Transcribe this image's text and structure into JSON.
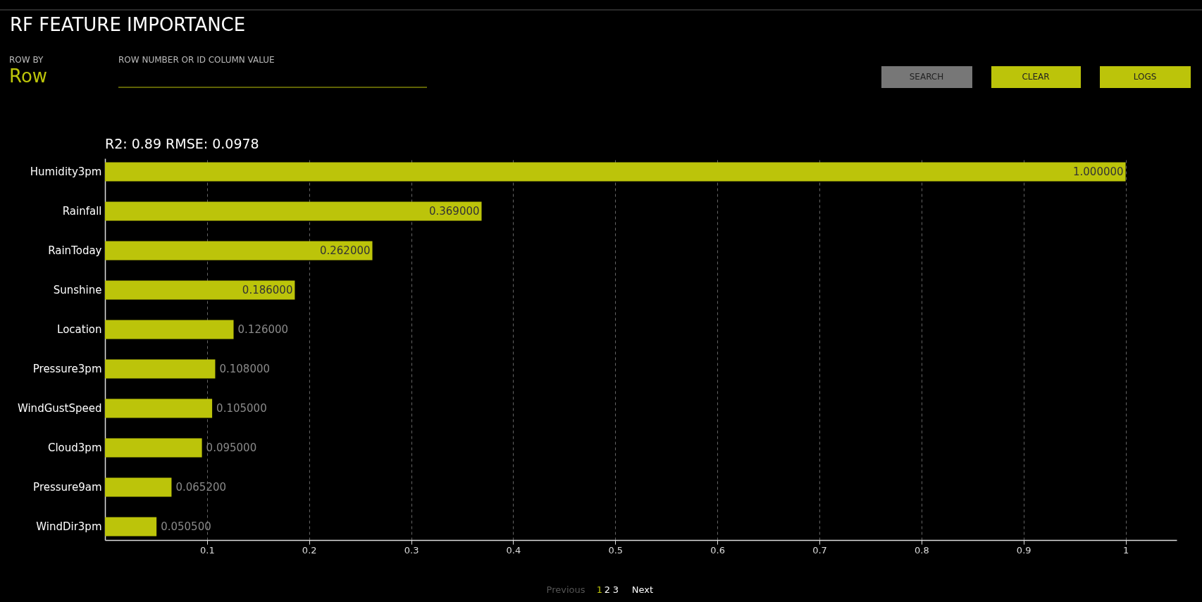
{
  "chart_data": {
    "type": "bar",
    "orientation": "horizontal",
    "title": "RF FEATURE IMPORTANCE",
    "subtitle": "R2: 0.89 RMSE: 0.0978",
    "categories": [
      "Humidity3pm",
      "Rainfall",
      "RainToday",
      "Sunshine",
      "Location",
      "Pressure3pm",
      "WindGustSpeed",
      "Cloud3pm",
      "Pressure9am",
      "WindDir3pm"
    ],
    "values": [
      1.0,
      0.369,
      0.262,
      0.186,
      0.126,
      0.108,
      0.105,
      0.095,
      0.0652,
      0.0505
    ],
    "value_labels": [
      "1.000000",
      "0.369000",
      "0.262000",
      "0.186000",
      "0.126000",
      "0.108000",
      "0.105000",
      "0.095000",
      "0.065200",
      "0.050500"
    ],
    "color": "#bcc40a",
    "xlim": [
      0,
      1.05
    ],
    "xticks": [
      0.1,
      0.2,
      0.3,
      0.4,
      0.5,
      0.6,
      0.7,
      0.8,
      0.9,
      1
    ],
    "grid": "x",
    "annotations": [
      "ROW BY",
      "Row",
      "ROW NUMBER OR ID COLUMN VALUE",
      "SEARCH",
      "CLEAR",
      "LOGS",
      "Previous",
      "1",
      "2",
      "3",
      "Next"
    ]
  }
}
